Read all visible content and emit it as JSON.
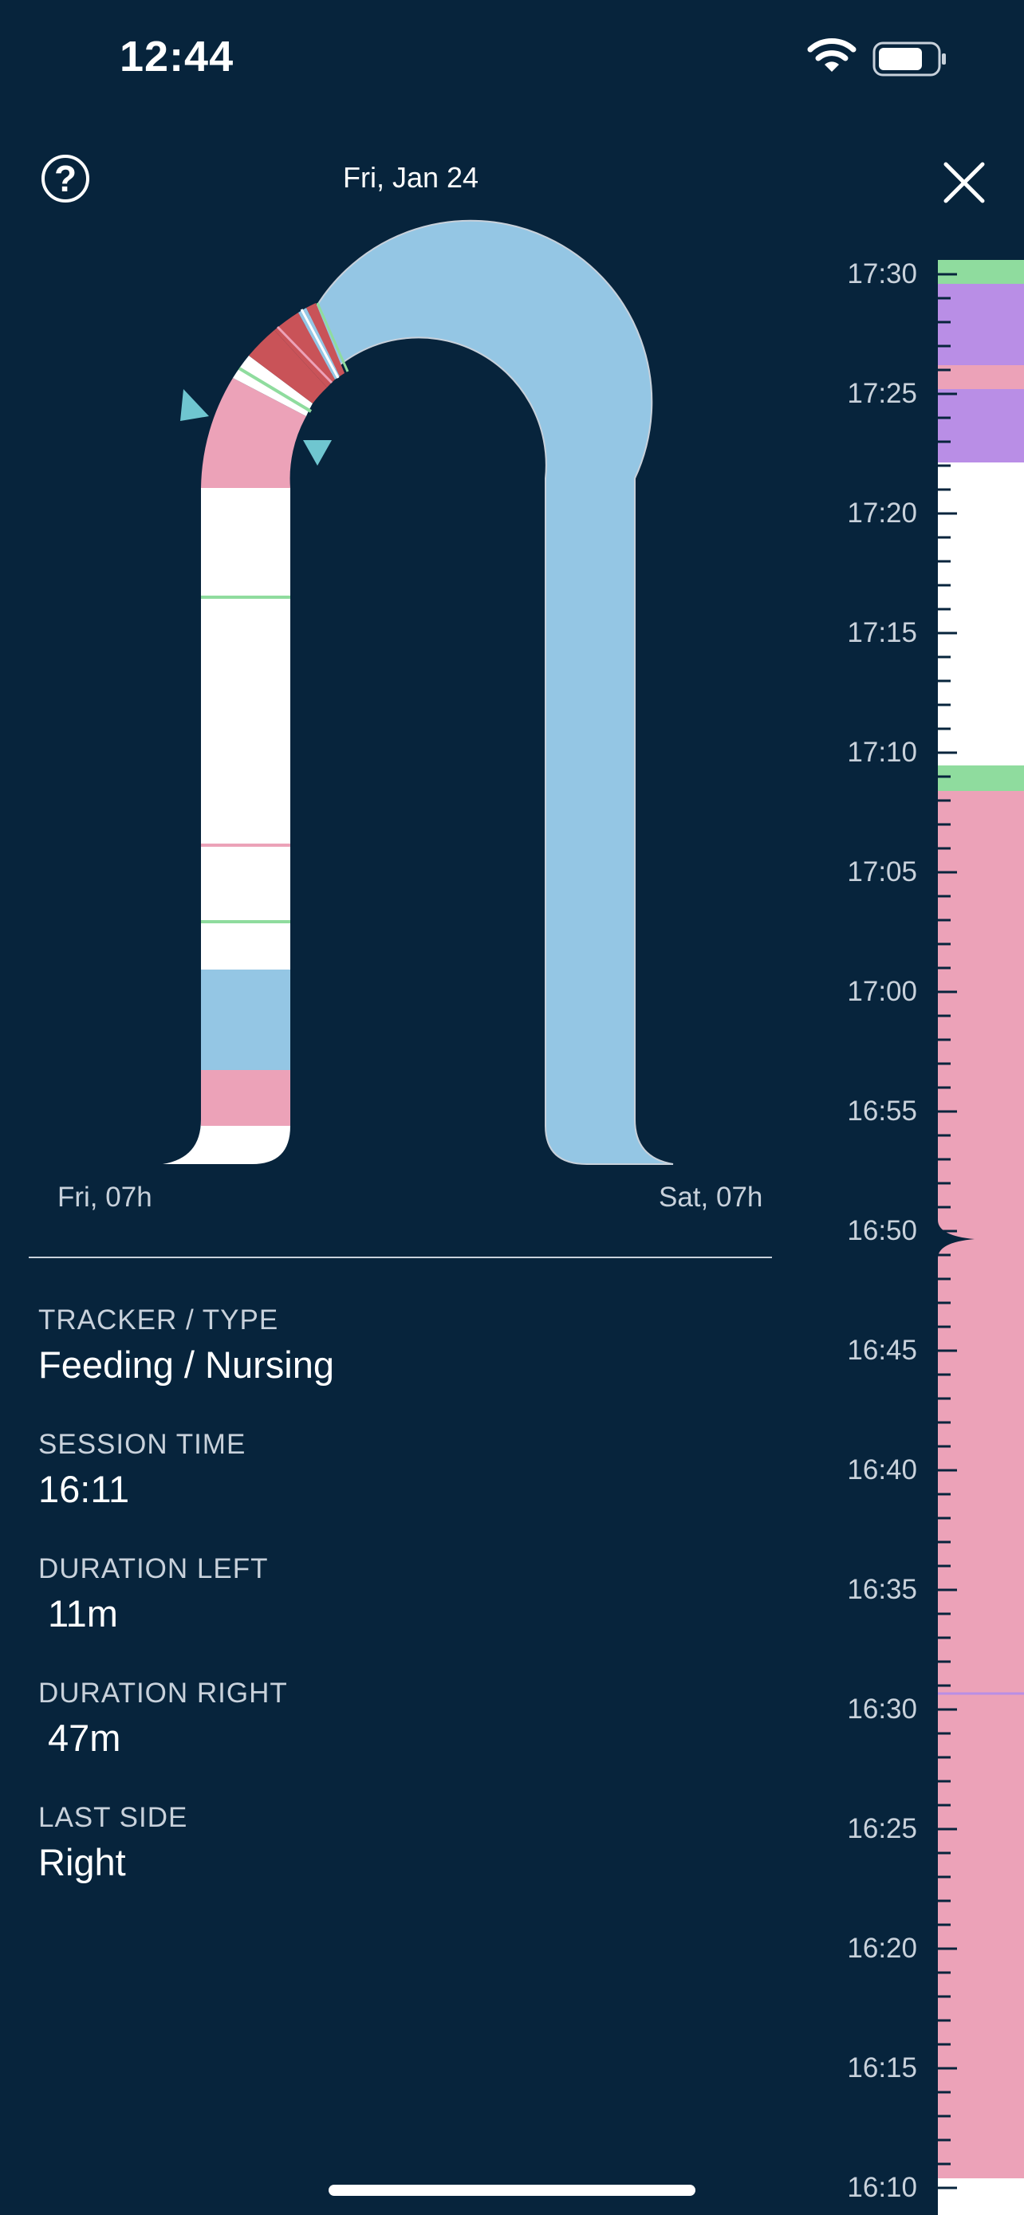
{
  "status_bar": {
    "time": "12:44"
  },
  "header": {
    "date": "Fri, Jan 24"
  },
  "chart": {
    "start_label": "Fri, 07h",
    "end_label": "Sat, 07h"
  },
  "colors": {
    "background": "#07243c",
    "white": "#ffffff",
    "pink": "#eca2b8",
    "blue": "#94c6e4",
    "green": "#8fdc9e",
    "purple": "#b98ee6",
    "red": "#c95358",
    "marker": "#6fc6d0"
  },
  "details": [
    {
      "key": "TRACKER / TYPE",
      "value": "Feeding / Nursing"
    },
    {
      "key": "SESSION TIME",
      "value": "16:11"
    },
    {
      "key": "DURATION LEFT",
      "value": "11m"
    },
    {
      "key": "DURATION RIGHT",
      "value": "47m"
    },
    {
      "key": "LAST SIDE",
      "value": "Right"
    }
  ],
  "timeline": {
    "labels": [
      "17:30",
      "17:25",
      "17:20",
      "17:15",
      "17:10",
      "17:05",
      "17:00",
      "16:55",
      "16:50",
      "16:45",
      "16:40",
      "16:35",
      "16:30",
      "16:25",
      "16:20",
      "16:15",
      "16:10"
    ]
  }
}
